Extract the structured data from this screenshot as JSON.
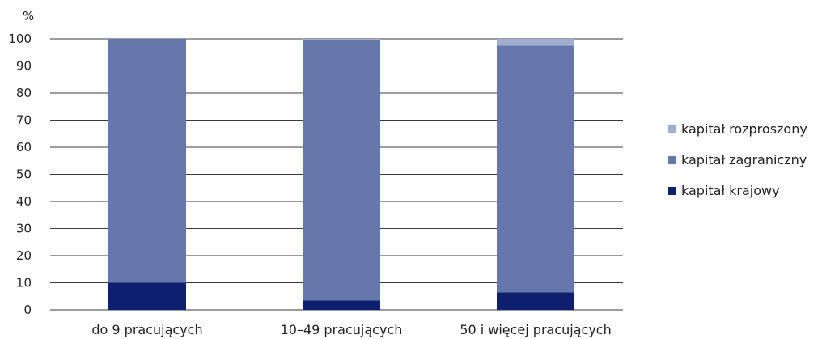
{
  "chart_data": {
    "type": "bar",
    "stacked": true,
    "unit_label": "%",
    "categories": [
      "do 9 pracujących",
      "10–49 pracujących",
      "50 i więcej pracujących"
    ],
    "series": [
      {
        "name": "kapitał krajowy",
        "color": "#0d1f6e",
        "values": [
          10,
          3.5,
          6.5
        ]
      },
      {
        "name": "kapitał zagraniczny",
        "color": "#6677ab",
        "values": [
          90,
          96,
          91
        ]
      },
      {
        "name": "kapitał rozproszony",
        "color": "#a3add0",
        "values": [
          0,
          0.5,
          2.5
        ]
      }
    ],
    "legend_order": [
      "kapitał rozproszony",
      "kapitał zagraniczny",
      "kapitał krajowy"
    ],
    "ylim": [
      0,
      100
    ],
    "yticks": [
      0,
      10,
      20,
      30,
      40,
      50,
      60,
      70,
      80,
      90,
      100
    ],
    "grid": true,
    "legend_position": "right"
  }
}
